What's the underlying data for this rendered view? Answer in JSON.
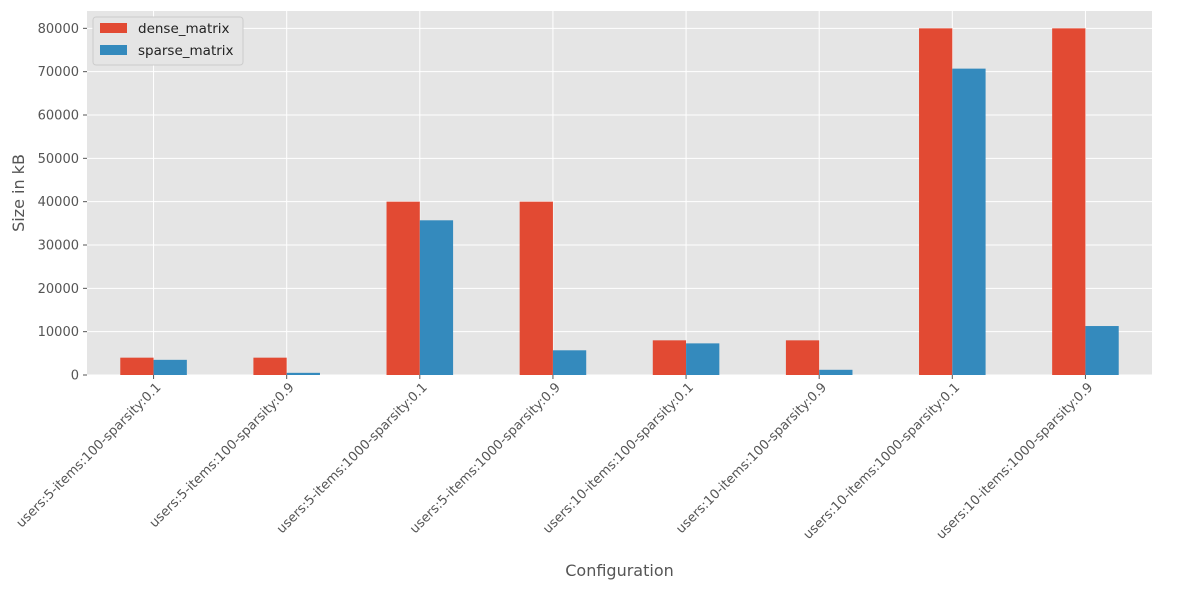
{
  "chart_data": {
    "type": "bar",
    "title": "",
    "xlabel": "Configuration",
    "ylabel": "Size in kB",
    "categories": [
      "users:5-items:100-sparsity:0.1",
      "users:5-items:100-sparsity:0.9",
      "users:5-items:1000-sparsity:0.1",
      "users:5-items:1000-sparsity:0.9",
      "users:10-items:100-sparsity:0.1",
      "users:10-items:100-sparsity:0.9",
      "users:10-items:1000-sparsity:0.1",
      "users:10-items:1000-sparsity:0.9"
    ],
    "series": [
      {
        "name": "dense_matrix",
        "color": "#E24A33",
        "values": [
          4000,
          4000,
          40000,
          40000,
          8000,
          8000,
          80000,
          80000
        ]
      },
      {
        "name": "sparse_matrix",
        "color": "#348ABD",
        "values": [
          3500,
          500,
          35700,
          5700,
          7300,
          1200,
          70700,
          11300
        ]
      }
    ],
    "ylim": [
      0,
      84000
    ],
    "yticks": [
      0,
      10000,
      20000,
      30000,
      40000,
      50000,
      60000,
      70000,
      80000
    ],
    "yticklabels": [
      "0",
      "10000",
      "20000",
      "30000",
      "40000",
      "50000",
      "60000",
      "70000",
      "80000"
    ],
    "grid": true,
    "legend_position": "top-left",
    "style": {
      "plot_background": "#E5E5E5",
      "grid_color": "#FFFFFF",
      "text_color": "#555555"
    }
  }
}
